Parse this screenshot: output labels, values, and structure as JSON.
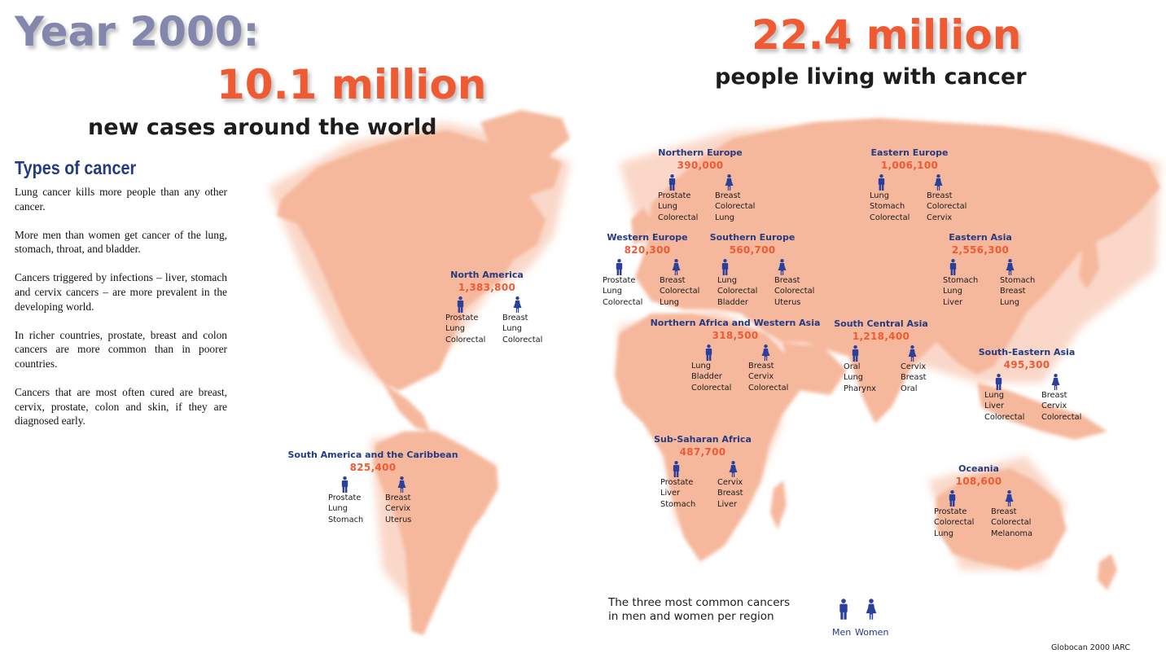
{
  "left_headline": {
    "year": "Year 2000:",
    "count": "10.1 million",
    "subtitle": "new cases around the world"
  },
  "right_headline": {
    "count": "22.4 million",
    "subtitle": "people living with cancer"
  },
  "types_of_cancer": {
    "title": "Types of cancer",
    "paragraphs": [
      "Lung cancer kills more people than any other cancer.",
      "More men than women get cancer of the lung, stomach, throat, and bladder.",
      "Cancers triggered by infections – liver, stomach and cervix cancers – are more prevalent in the developing world.",
      "In richer countries, prostate, breast and colon cancers are more common than in poorer countries.",
      "Cancers that are most often cured are breast, cervix, prostate, colon and skin, if they are diagnosed early."
    ]
  },
  "regions": [
    {
      "name": "North America",
      "count": "1,383,800",
      "men": [
        "Prostate",
        "Lung",
        "Colorectal"
      ],
      "women": [
        "Breast",
        "Lung",
        "Colorectal"
      ]
    },
    {
      "name": "South America and the Caribbean",
      "count": "825,400",
      "men": [
        "Prostate",
        "Lung",
        "Stomach"
      ],
      "women": [
        "Breast",
        "Cervix",
        "Uterus"
      ]
    },
    {
      "name": "Northern Europe",
      "count": "390,000",
      "men": [
        "Prostate",
        "Lung",
        "Colorectal"
      ],
      "women": [
        "Breast",
        "Colorectal",
        "Lung"
      ]
    },
    {
      "name": "Eastern Europe",
      "count": "1,006,100",
      "men": [
        "Lung",
        "Stomach",
        "Colorectal"
      ],
      "women": [
        "Breast",
        "Colorectal",
        "Cervix"
      ]
    },
    {
      "name": "Western Europe",
      "count": "820,300",
      "men": [
        "Prostate",
        "Lung",
        "Colorectal"
      ],
      "women": [
        "Breast",
        "Colorectal",
        "Lung"
      ]
    },
    {
      "name": "Southern Europe",
      "count": "560,700",
      "men": [
        "Lung",
        "Colorectal",
        "Bladder"
      ],
      "women": [
        "Breast",
        "Colorectal",
        "Uterus"
      ]
    },
    {
      "name": "Eastern Asia",
      "count": "2,556,300",
      "men": [
        "Stomach",
        "Lung",
        "Liver"
      ],
      "women": [
        "Stomach",
        "Breast",
        "Lung"
      ]
    },
    {
      "name": "Northern Africa and Western Asia",
      "count": "318,500",
      "men": [
        "Lung",
        "Bladder",
        "Colorectal"
      ],
      "women": [
        "Breast",
        "Cervix",
        "Colorectal"
      ]
    },
    {
      "name": "South Central Asia",
      "count": "1,218,400",
      "men": [
        "Oral",
        "Lung",
        "Pharynx"
      ],
      "women": [
        "Cervix",
        "Breast",
        "Oral"
      ]
    },
    {
      "name": "South-Eastern Asia",
      "count": "495,300",
      "men": [
        "Lung",
        "Liver",
        "Colorectal"
      ],
      "women": [
        "Breast",
        "Cervix",
        "Colorectal"
      ]
    },
    {
      "name": "Sub-Saharan Africa",
      "count": "487,700",
      "men": [
        "Prostate",
        "Liver",
        "Stomach"
      ],
      "women": [
        "Cervix",
        "Breast",
        "Liver"
      ]
    },
    {
      "name": "Oceania",
      "count": "108,600",
      "men": [
        "Prostate",
        "Colorectal",
        "Lung"
      ],
      "women": [
        "Breast",
        "Colorectal",
        "Melanoma"
      ]
    }
  ],
  "legend": {
    "text_line1": "The three most common cancers",
    "text_line2": "in men and women per region",
    "men_label": "Men",
    "women_label": "Women"
  },
  "source": "Globocan 2000 IARC",
  "colors": {
    "land": "#f6b89c",
    "headline_orange": "#ef5a33",
    "headline_slate": "#8487ad",
    "region_blue": "#233b82",
    "icon_blue": "#2b3f9c"
  }
}
